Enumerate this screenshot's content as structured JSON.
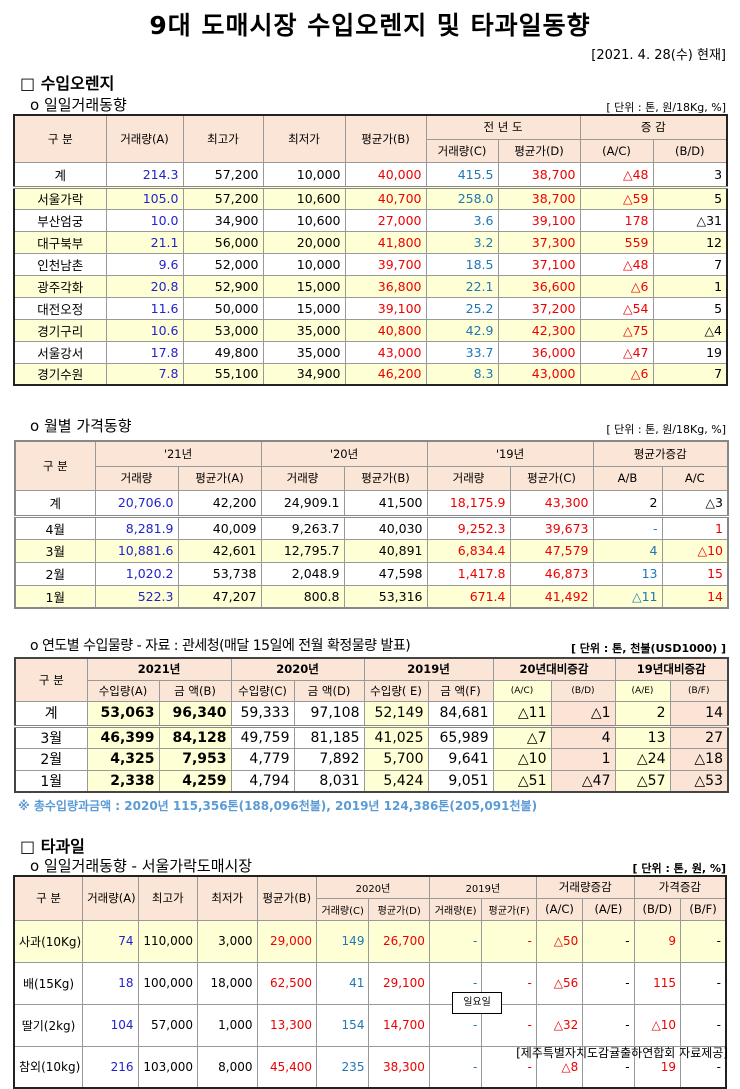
{
  "title": "9대 도매시장 수입오렌지 및 타과일동향",
  "date": "[2021. 4. 28(수) 현재]",
  "s1": {
    "title": "□ 수입오렌지",
    "sub1": "o 일일거래동향",
    "unit1": "[ 단위 : 톤, 원/18Kg, %]",
    "sub2": "o 월별 가격동향",
    "unit2": "[ 단위 : 톤, 원/18Kg, %]",
    "sub3": "o 연도별 수입물량 - 자료 : 관세청(매달 15일에 전월 확정물량 발표)",
    "unit3": "[ 단위 : 톤, 천불(USD1000) ]",
    "note": "※ 총수입량과금액 : 2020년 115,356톤(188,096천불),  2019년 124,386톤(205,091천불)"
  },
  "s2": {
    "title": "□ 타과일",
    "sub": "o 일일거래동향 - 서울가락도매시장",
    "unit": "[ 단위 : 톤, 원, %]",
    "popup": "일요일",
    "source": "[제주특별자치도감귤출하연합회 자료제공]"
  },
  "t1": {
    "h": [
      "구    분",
      "거래량(A)",
      "최고가",
      "최저가",
      "평균가(B)",
      "전 년 도",
      "거래량(C)",
      "평균가(D)",
      "증    감",
      "(A/C)",
      "(B/D)"
    ],
    "colors": [
      "#000",
      "#2222cc",
      "#000",
      "#000",
      "#e00",
      "#1f77b4",
      "#e00",
      "#e00",
      "#000"
    ],
    "rows": [
      [
        "계",
        "214.3",
        "57,200",
        "10,000",
        "40,000",
        "415.5",
        "38,700",
        "△48",
        "3"
      ],
      [
        "서울가락",
        "105.0",
        "57,200",
        "10,600",
        "40,700",
        "258.0",
        "38,700",
        "△59",
        "5"
      ],
      [
        "부산엄궁",
        "10.0",
        "34,900",
        "10,600",
        "27,000",
        "3.6",
        "39,100",
        "178",
        "△31"
      ],
      [
        "대구북부",
        "21.1",
        "56,000",
        "20,000",
        "41,800",
        "3.2",
        "37,300",
        "559",
        "12"
      ],
      [
        "인천남촌",
        "9.6",
        "52,000",
        "10,000",
        "39,700",
        "18.5",
        "37,100",
        "△48",
        "7"
      ],
      [
        "광주각화",
        "20.8",
        "52,900",
        "15,000",
        "36,800",
        "22.1",
        "36,600",
        "△6",
        "1"
      ],
      [
        "대전오정",
        "11.6",
        "50,000",
        "15,000",
        "39,100",
        "25.2",
        "37,200",
        "△54",
        "5"
      ],
      [
        "경기구리",
        "10.6",
        "53,000",
        "35,000",
        "40,800",
        "42.9",
        "42,300",
        "△75",
        "△4"
      ],
      [
        "서울강서",
        "17.8",
        "49,800",
        "35,000",
        "43,000",
        "33.7",
        "36,000",
        "△47",
        "19"
      ],
      [
        "경기수원",
        "7.8",
        "55,100",
        "34,900",
        "46,200",
        "8.3",
        "43,000",
        "△6",
        "7"
      ]
    ]
  },
  "t2": {
    "h": [
      "구    분",
      "'21년",
      "'20년",
      "'19년",
      "평균가증감",
      "거래량",
      "평균가(A)",
      "거래량",
      "평균가(B)",
      "거래량",
      "평균가(C)",
      "A/B",
      "A/C"
    ],
    "colors": [
      "#000",
      "#2222cc",
      "#000",
      "#000",
      "#000",
      "#e00",
      "#e00",
      "#1f77b4",
      "#e00"
    ],
    "rows": [
      [
        "계",
        "20,706.0",
        "42,200",
        "24,909.1",
        "41,500",
        "18,175.9",
        "43,300",
        "2",
        "△3"
      ],
      [
        "4월",
        "8,281.9",
        "40,009",
        "9,263.7",
        "40,030",
        "9,252.3",
        "39,673",
        "-",
        "1"
      ],
      [
        "3월",
        "10,881.6",
        "42,601",
        "12,795.7",
        "40,891",
        "6,834.4",
        "47,579",
        "4",
        "△10"
      ],
      [
        "2월",
        "1,020.2",
        "53,738",
        "2,048.9",
        "47,598",
        "1,417.8",
        "46,873",
        "13",
        "15"
      ],
      [
        "1월",
        "522.3",
        "47,207",
        "800.8",
        "53,316",
        "671.4",
        "41,492",
        "△11",
        "14"
      ]
    ]
  },
  "t3": {
    "h": [
      "구 분",
      "2021년",
      "2020년",
      "2019년",
      "20년대비증감",
      "19년대비증감",
      "수입량(A)",
      "금   액(B)",
      "수입량(C)",
      "금   액(D)",
      "수입량( E)",
      "금   액(F)",
      "(A/C)",
      "(B/D)",
      "(A/E)",
      "(B/F)"
    ],
    "rows": [
      [
        "계",
        "53,063",
        "96,340",
        "59,333",
        "97,108",
        "52,149",
        "84,681",
        "△11",
        "△1",
        "2",
        "14"
      ],
      [
        "3월",
        "46,399",
        "84,128",
        "49,759",
        "81,185",
        "41,025",
        "65,989",
        "△7",
        "4",
        "13",
        "27"
      ],
      [
        "2월",
        "4,325",
        "7,953",
        "4,779",
        "7,892",
        "5,700",
        "9,641",
        "△10",
        "1",
        "△24",
        "△18"
      ],
      [
        "1월",
        "2,338",
        "4,259",
        "4,794",
        "8,031",
        "5,424",
        "9,051",
        "△51",
        "△47",
        "△57",
        "△53"
      ]
    ]
  },
  "t4": {
    "h": [
      "구 분",
      "거래량(A)",
      "최고가",
      "최저가",
      "평균가(B)",
      "2020년",
      "2019년",
      "거래량증감",
      "가격증감",
      "거래량(C)",
      "평균가(D)",
      "거래량(E)",
      "평균가(F)",
      "(A/C)",
      "(A/E)",
      "(B/D)",
      "(B/F)"
    ],
    "colors": [
      "#000",
      "#2222cc",
      "#000",
      "#000",
      "#e00",
      "#1f77b4",
      "#e00",
      "#1f77b4",
      "#e00",
      "#e00",
      "#000",
      "#e00",
      "#000"
    ],
    "rows": [
      [
        "사과(10Kg)",
        "74",
        "110,000",
        "3,000",
        "29,000",
        "149",
        "26,700",
        "-",
        "-",
        "△50",
        "-",
        "9",
        "-"
      ],
      [
        "배(15Kg)",
        "18",
        "100,000",
        "18,000",
        "62,500",
        "41",
        "29,100",
        "-",
        "-",
        "△56",
        "-",
        "115",
        "-"
      ],
      [
        "딸기(2kg)",
        "104",
        "57,000",
        "1,000",
        "13,300",
        "154",
        "14,700",
        "-",
        "-",
        "△32",
        "-",
        "△10",
        "-"
      ],
      [
        "참외(10kg)",
        "216",
        "103,000",
        "8,000",
        "45,400",
        "235",
        "38,300",
        "-",
        "-",
        "△8",
        "-",
        "19",
        "-"
      ]
    ]
  }
}
